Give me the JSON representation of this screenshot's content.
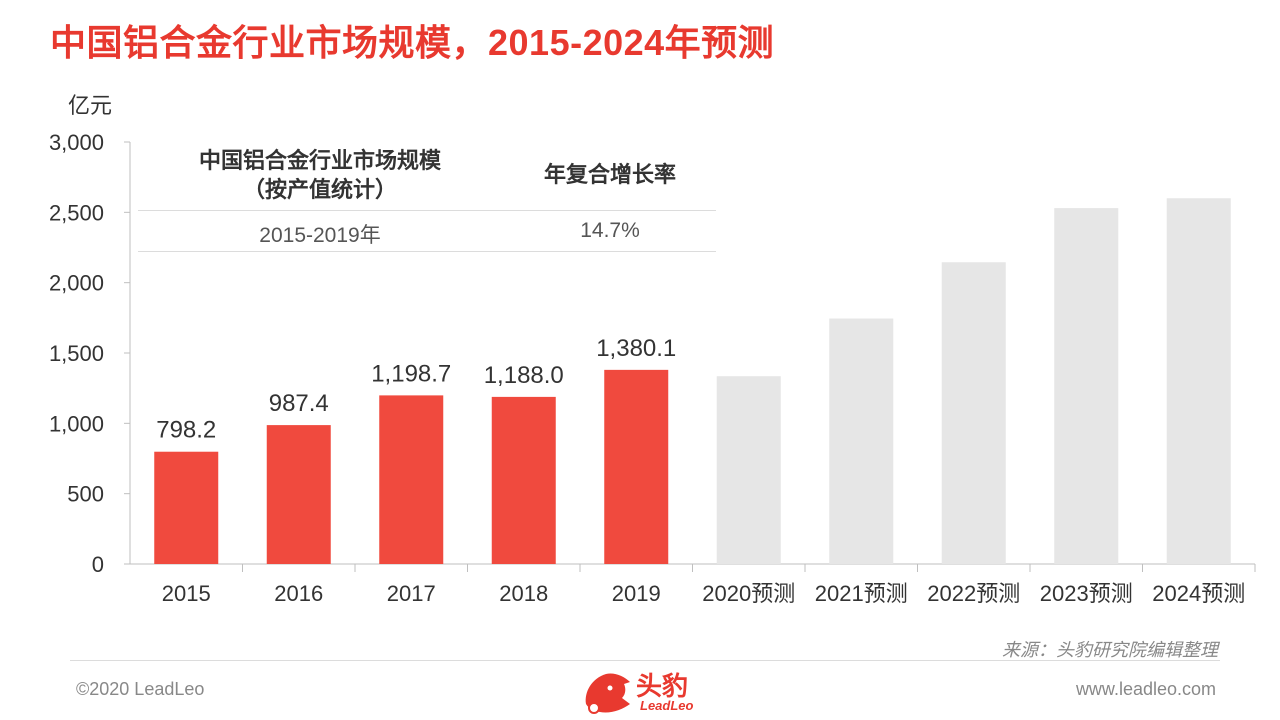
{
  "title": "中国铝合金行业市场规模，2015-2024年预测",
  "unit_label": "亿元",
  "inset": {
    "header_left": "中国铝合金行业市场规模",
    "header_left_sub": "（按产值统计）",
    "header_right": "年复合增长率",
    "period": "2015-2019年",
    "cagr": "14.7%"
  },
  "chart_data": {
    "type": "bar",
    "categories": [
      "2015",
      "2016",
      "2017",
      "2018",
      "2019",
      "2020预测",
      "2021预测",
      "2022预测",
      "2023预测",
      "2024预测"
    ],
    "values": [
      798.2,
      987.4,
      1198.7,
      1188.0,
      1380.1,
      1335,
      1745,
      2145,
      2530,
      2600
    ],
    "data_labels": [
      "798.2",
      "987.4",
      "1,198.7",
      "1,188.0",
      "1,380.1",
      "",
      "",
      "",
      "",
      ""
    ],
    "forecast": [
      false,
      false,
      false,
      false,
      false,
      true,
      true,
      true,
      true,
      true
    ],
    "ylim": [
      0,
      3000
    ],
    "yticks": [
      0,
      500,
      1000,
      1500,
      2000,
      2500,
      3000
    ],
    "ytick_labels": [
      "0",
      "500",
      "1,000",
      "1,500",
      "2,000",
      "2,500",
      "3,000"
    ],
    "colors": {
      "actual": "#f04a3e",
      "forecast": "#e6e6e6",
      "axis": "#bfbfbf"
    }
  },
  "source": "来源：头豹研究院编辑整理",
  "footer": {
    "copyright": "©2020 LeadLeo",
    "website": "www.leadleo.com"
  },
  "logo": {
    "cn": "头豹",
    "en": "LeadLeo"
  }
}
